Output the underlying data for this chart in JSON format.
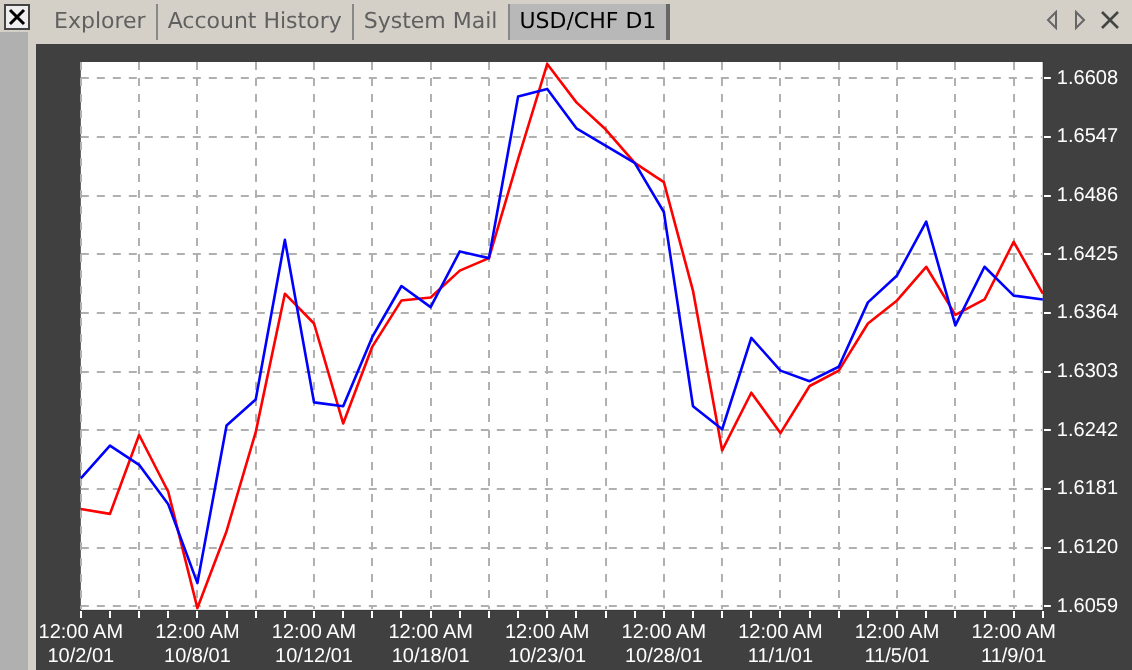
{
  "chart_data": {
    "type": "line",
    "title": "USD/CHF D1",
    "annotations": [
      "Explorer",
      "Account History",
      "System Mail"
    ],
    "categories": [
      "12:00 AM 10/2/01",
      null,
      null,
      null,
      "12:00 AM 10/8/01",
      null,
      null,
      null,
      "12:00 AM 10/12/01",
      null,
      null,
      null,
      "12:00 AM 10/18/01",
      null,
      null,
      null,
      "12:00 AM 10/23/01",
      null,
      null,
      null,
      "12:00 AM 10/28/01",
      null,
      null,
      null,
      "12:00 AM 11/1/01",
      null,
      null,
      null,
      "12:00 AM 11/5/01",
      null,
      null,
      null,
      "12:00 AM 11/9/01",
      null
    ],
    "series": [
      {
        "color": "#0000ff",
        "values": [
          1.6192,
          1.6226,
          1.6206,
          1.6165,
          1.6083,
          1.6247,
          1.6274,
          1.644,
          1.6271,
          1.6267,
          1.6339,
          1.6392,
          1.637,
          1.6428,
          1.6421,
          1.6589,
          1.6597,
          1.6556,
          1.6538,
          1.652,
          1.6469,
          1.6267,
          1.6243,
          1.6338,
          1.6304,
          1.6293,
          1.6308,
          1.6375,
          1.6403,
          1.6459,
          1.6351,
          1.6412,
          1.6382,
          1.6378
        ]
      },
      {
        "color": "#ff0000",
        "values": [
          1.616,
          1.6155,
          1.6237,
          1.6178,
          1.6057,
          1.6137,
          1.624,
          1.6384,
          1.6353,
          1.6249,
          1.6329,
          1.6377,
          1.638,
          1.6408,
          1.6421,
          1.6524,
          1.6623,
          1.6583,
          1.6555,
          1.652,
          1.65,
          1.6387,
          1.6221,
          1.6281,
          1.6239,
          1.6288,
          1.6304,
          1.6353,
          1.6377,
          1.6412,
          1.6362,
          1.6378,
          1.6438,
          1.6384
        ]
      }
    ],
    "ylim": [
      1.6055,
      1.6625
    ],
    "yticks": [
      1.6059,
      {
        "value": 1.612,
        "label": "1.6120"
      },
      1.6181,
      1.6242,
      1.6303,
      1.6364,
      1.6425,
      1.6486,
      1.6547,
      1.6608
    ],
    "grid": true,
    "legend": false,
    "marker": "none",
    "line_style": "solid"
  }
}
